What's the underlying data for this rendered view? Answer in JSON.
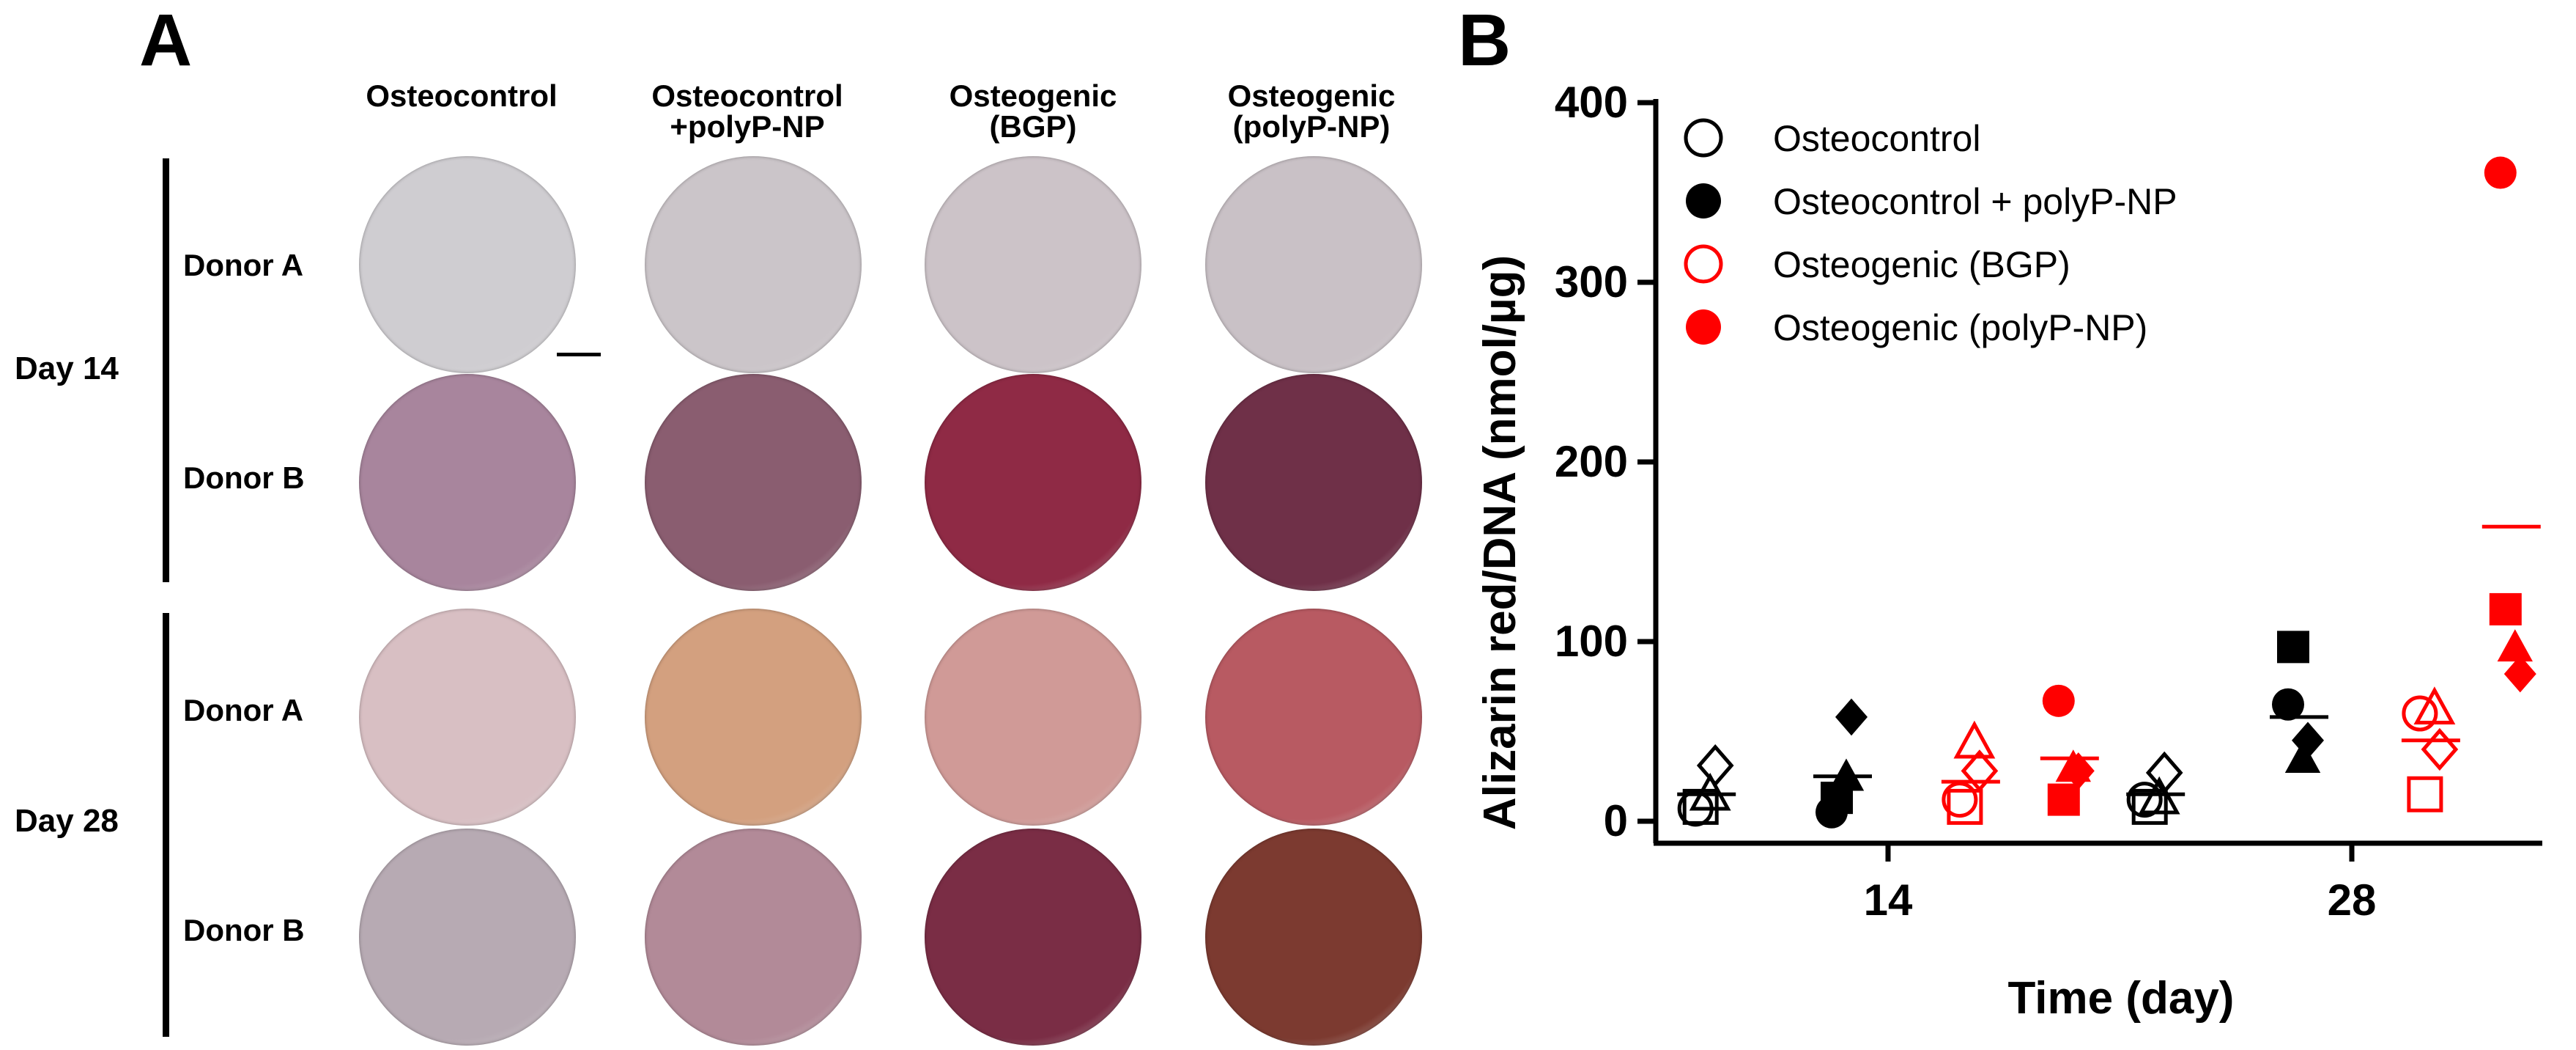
{
  "panel_a": {
    "letter": "A",
    "columns": [
      "Osteocontrol",
      "Osteocontrol\n+polyP-NP",
      "Osteogenic\n(BGP)",
      "Osteogenic\n(polyP-NP)"
    ],
    "days": [
      "Day 14",
      "Day 28"
    ],
    "donors": [
      "Donor A",
      "Donor B"
    ],
    "well_colors": [
      [
        "#cfcdd1",
        "#cbc5c9",
        "#ccc3c8",
        "#c9c1c6"
      ],
      [
        "#a8859d",
        "#8a5d70",
        "#8f2a45",
        "#6f3048"
      ],
      [
        "#d8bfc3",
        "#d3a07f",
        "#d09a97",
        "#b85a62"
      ],
      [
        "#b7aab3",
        "#b28a98",
        "#7a2d45",
        "#7c3a30"
      ]
    ]
  },
  "panel_b": {
    "letter": "B"
  },
  "chart_data": {
    "type": "scatter",
    "xlabel": "Time (day)",
    "ylabel": "Alizarin red/DNA (nmol/µg)",
    "ylim": [
      0,
      400
    ],
    "yticks": [
      0,
      100,
      200,
      300,
      400
    ],
    "x_categories": [
      "14",
      "28"
    ],
    "legend_placement": "top-left",
    "series": [
      {
        "name": "Osteocontrol",
        "color": "#000000",
        "filled": false,
        "points": [
          {
            "day": "14",
            "donor": "square",
            "value": 8
          },
          {
            "day": "14",
            "donor": "circle",
            "value": 7
          },
          {
            "day": "14",
            "donor": "triangle",
            "value": 15
          },
          {
            "day": "14",
            "donor": "diamond",
            "value": 31
          },
          {
            "day": "28",
            "donor": "square",
            "value": 8
          },
          {
            "day": "28",
            "donor": "circle",
            "value": 12
          },
          {
            "day": "28",
            "donor": "triangle",
            "value": 13
          },
          {
            "day": "28",
            "donor": "diamond",
            "value": 27
          }
        ],
        "means": {
          "14": 15,
          "28": 15
        }
      },
      {
        "name": "Osteocontrol + polyP-NP",
        "color": "#000000",
        "filled": true,
        "points": [
          {
            "day": "14",
            "donor": "square",
            "value": 13
          },
          {
            "day": "14",
            "donor": "circle",
            "value": 5
          },
          {
            "day": "14",
            "donor": "triangle",
            "value": 25
          },
          {
            "day": "14",
            "donor": "diamond",
            "value": 58
          },
          {
            "day": "28",
            "donor": "square",
            "value": 97
          },
          {
            "day": "28",
            "donor": "circle",
            "value": 65
          },
          {
            "day": "28",
            "donor": "triangle",
            "value": 35
          },
          {
            "day": "28",
            "donor": "diamond",
            "value": 45
          }
        ],
        "means": {
          "14": 25,
          "28": 58
        }
      },
      {
        "name": "Osteogenic (BGP)",
        "color": "#ff0000",
        "filled": false,
        "points": [
          {
            "day": "14",
            "donor": "square",
            "value": 8
          },
          {
            "day": "14",
            "donor": "circle",
            "value": 12
          },
          {
            "day": "14",
            "donor": "triangle",
            "value": 44
          },
          {
            "day": "14",
            "donor": "diamond",
            "value": 28
          },
          {
            "day": "28",
            "donor": "square",
            "value": 15
          },
          {
            "day": "28",
            "donor": "circle",
            "value": 60
          },
          {
            "day": "28",
            "donor": "triangle",
            "value": 63
          },
          {
            "day": "28",
            "donor": "diamond",
            "value": 40
          }
        ],
        "means": {
          "14": 22,
          "28": 45
        }
      },
      {
        "name": "Osteogenic (polyP-NP)",
        "color": "#ff0000",
        "filled": true,
        "points": [
          {
            "day": "14",
            "donor": "square",
            "value": 12
          },
          {
            "day": "14",
            "donor": "circle",
            "value": 67
          },
          {
            "day": "14",
            "donor": "triangle",
            "value": 30
          },
          {
            "day": "14",
            "donor": "diamond",
            "value": 28
          },
          {
            "day": "28",
            "donor": "square",
            "value": 118
          },
          {
            "day": "28",
            "donor": "circle",
            "value": 361
          },
          {
            "day": "28",
            "donor": "triangle",
            "value": 97
          },
          {
            "day": "28",
            "donor": "diamond",
            "value": 82
          }
        ],
        "means": {
          "14": 35,
          "28": 164
        }
      }
    ]
  }
}
